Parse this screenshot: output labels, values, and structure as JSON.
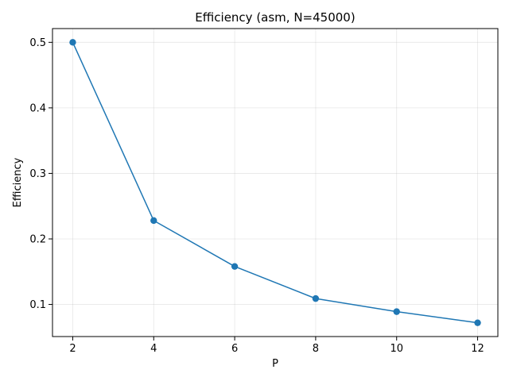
{
  "chart_data": {
    "type": "line",
    "title": "Efficiency (asm, N=45000)",
    "xlabel": "P",
    "ylabel": "Efficiency",
    "x": [
      2,
      4,
      6,
      8,
      10,
      12
    ],
    "series": [
      {
        "values": [
          0.5,
          0.228,
          0.158,
          0.109,
          0.089,
          0.072
        ]
      }
    ],
    "xticks": [
      "2",
      "4",
      "6",
      "8",
      "10",
      "12"
    ],
    "yticks": [
      "0.1",
      "0.2",
      "0.3",
      "0.4",
      "0.5"
    ],
    "xlim": [
      1.5,
      12.5
    ],
    "ylim": [
      0.051,
      0.521
    ],
    "grid": true,
    "markers": "circle",
    "line_color": "#1f77b4"
  }
}
